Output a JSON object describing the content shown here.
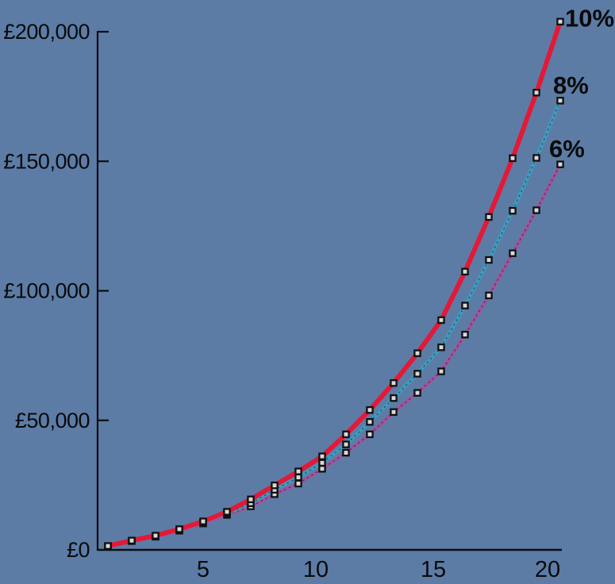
{
  "chart_data": {
    "type": "line",
    "title": "",
    "xlabel": "",
    "ylabel": "",
    "x": [
      1,
      2,
      3,
      4,
      5,
      6,
      7,
      8,
      9,
      10,
      11,
      12,
      13,
      14,
      15,
      16,
      17,
      18,
      19,
      20
    ],
    "xlim": [
      0,
      20
    ],
    "ylim": [
      0,
      205000
    ],
    "grid": false,
    "legend_position": "line-end-labels",
    "x_ticks": [
      {
        "value": 5,
        "label": "5"
      },
      {
        "value": 10,
        "label": "10"
      },
      {
        "value": 15,
        "label": "15"
      },
      {
        "value": 20,
        "label": "20"
      }
    ],
    "y_ticks": [
      {
        "value": 0,
        "label": "£0"
      },
      {
        "value": 50000,
        "label": "£50,000"
      },
      {
        "value": 100000,
        "label": "£100,000"
      },
      {
        "value": 150000,
        "label": "£150,000"
      },
      {
        "value": 200000,
        "label": "£200,000"
      }
    ],
    "series": [
      {
        "name": "10%",
        "color": "#e31937",
        "line_style": "solid",
        "line_weight": "thick",
        "values": [
          1500,
          3600,
          5500,
          8000,
          11000,
          14700,
          19500,
          24900,
          30300,
          36100,
          44600,
          54000,
          64400,
          75900,
          88700,
          107400,
          128500,
          151200,
          176500,
          203900
        ]
      },
      {
        "name": "8%",
        "color": "#3e9cbe",
        "line_style": "solid-with-dotted-overlay",
        "line_weight": "medium",
        "values": [
          1450,
          3500,
          5300,
          7700,
          10600,
          14100,
          18000,
          23200,
          28000,
          33600,
          40700,
          49400,
          58600,
          68000,
          78200,
          94300,
          111900,
          130900,
          151300,
          173400
        ]
      },
      {
        "name": "6%",
        "color": "#a0549b",
        "line_style": "solid-with-dotted-overlay",
        "line_weight": "medium",
        "values": [
          1400,
          3400,
          5100,
          7400,
          10200,
          13500,
          16800,
          21500,
          25600,
          31300,
          37500,
          44600,
          53200,
          60600,
          68900,
          83100,
          98200,
          114500,
          131100,
          148800
        ]
      }
    ],
    "marker": {
      "shape": "square",
      "fill": "#d9d9d9",
      "stroke": "#111111"
    },
    "colors": {
      "background": "#5c7ca6",
      "axis": "#0d0d0d",
      "text": "#0a0a0a"
    }
  }
}
